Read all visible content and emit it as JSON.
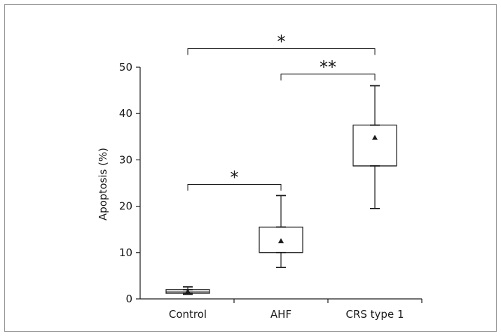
{
  "chart_data": {
    "type": "box",
    "title": "",
    "xlabel": "",
    "ylabel": "Apoptosis (%)",
    "ylim": [
      0,
      50
    ],
    "yticks": [
      0,
      10,
      20,
      30,
      40,
      50
    ],
    "categories": [
      "Control",
      "AHF",
      "CRS type 1"
    ],
    "boxes": [
      {
        "category": "Control",
        "min": 1.0,
        "q1": 1.2,
        "median": 1.5,
        "q3": 2.0,
        "max": 2.6,
        "mean": 1.6
      },
      {
        "category": "AHF",
        "min": 6.8,
        "q1": 10.0,
        "median": 10.0,
        "q3": 15.5,
        "max": 22.3,
        "mean": 12.5
      },
      {
        "category": "CRS type 1",
        "min": 19.5,
        "q1": 28.7,
        "median": 28.7,
        "q3": 37.5,
        "max": 46.0,
        "mean": 34.8
      }
    ],
    "significance": [
      {
        "from": "Control",
        "to": "CRS type 1",
        "label": "*",
        "y": 54
      },
      {
        "from": "AHF",
        "to": "CRS type 1",
        "label": "**",
        "y": 48.5
      },
      {
        "from": "Control",
        "to": "AHF",
        "label": "*",
        "y": 24.7
      }
    ]
  }
}
